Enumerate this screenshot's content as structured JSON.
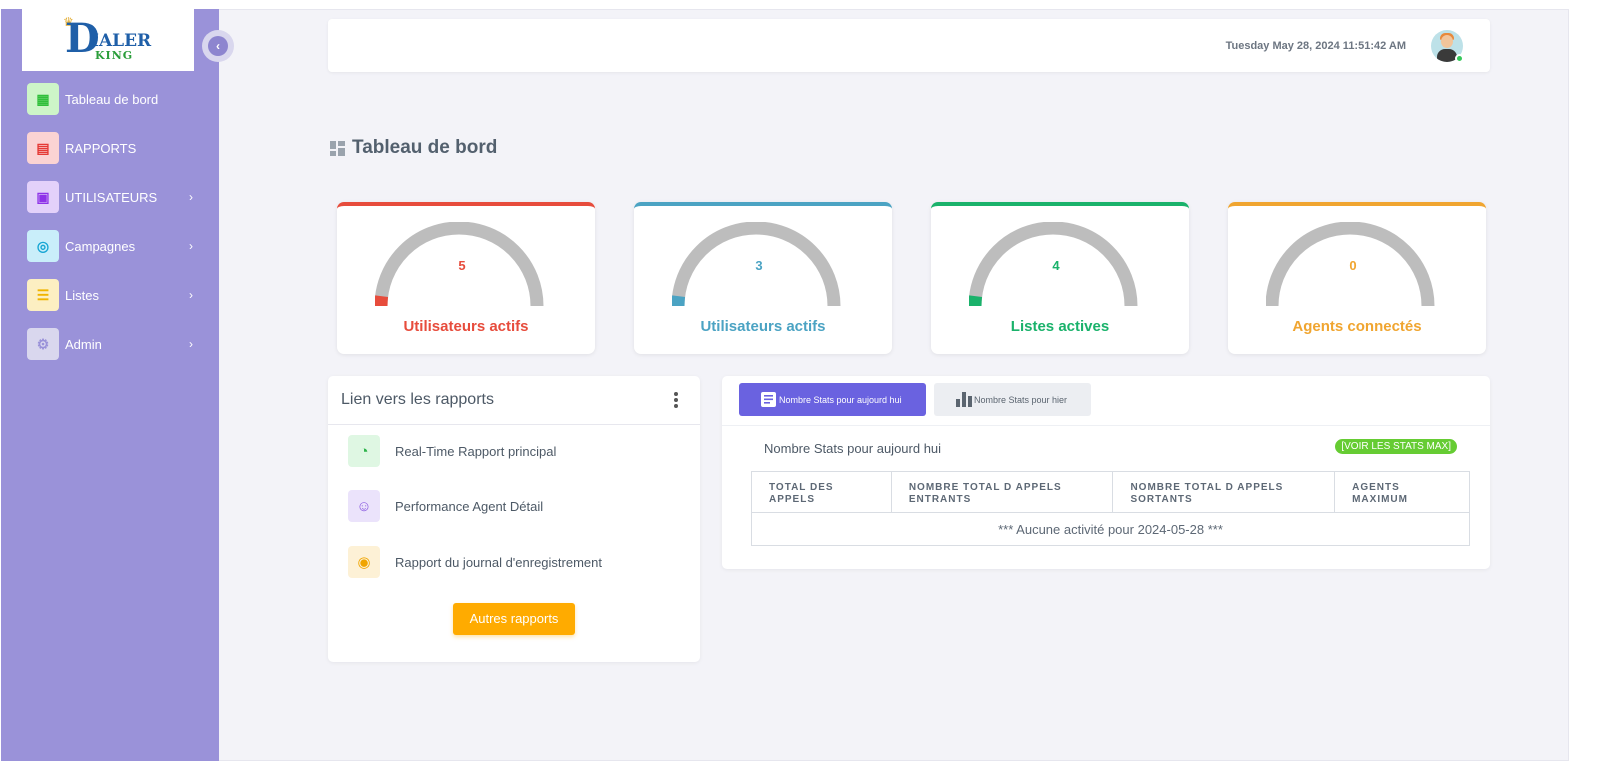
{
  "app": {
    "logo_text": "DIALER KING",
    "datetime": "Tuesday May 28, 2024 11:51:42 AM"
  },
  "sidebar": {
    "items": [
      {
        "label": "Tableau de bord",
        "icon": "dashboard-icon",
        "icon_bg": "#cdf5c8",
        "icon_color": "#2fbf3a",
        "has_chevron": false
      },
      {
        "label": "RAPPORTS",
        "icon": "report-file-icon",
        "icon_bg": "#fbd3d3",
        "icon_color": "#e53935",
        "has_chevron": false
      },
      {
        "label": "UTILISATEURS",
        "icon": "user-contact-icon",
        "icon_bg": "#e3d1fa",
        "icon_color": "#8e33e8",
        "has_chevron": true
      },
      {
        "label": "Campagnes",
        "icon": "target-icon",
        "icon_bg": "#c9eefa",
        "icon_color": "#17a6d4",
        "has_chevron": true
      },
      {
        "label": "Listes",
        "icon": "list-icon",
        "icon_bg": "#fcefc2",
        "icon_color": "#f0b400",
        "has_chevron": true
      },
      {
        "label": "Admin",
        "icon": "gear-icon",
        "icon_bg": "#d9d7ee",
        "icon_color": "#9a92d9",
        "has_chevron": true
      }
    ]
  },
  "page": {
    "title": "Tableau de bord"
  },
  "gauges": [
    {
      "value": "5",
      "label": "Utilisateurs actifs",
      "color": "#e74c3c",
      "fraction": 0.04
    },
    {
      "value": "3",
      "label": "Utilisateurs actifs",
      "color": "#4ba3c3",
      "fraction": 0.04
    },
    {
      "value": "4",
      "label": "Listes actives",
      "color": "#1ab26b",
      "fraction": 0.04
    },
    {
      "value": "0",
      "label": "Agents connectés",
      "color": "#f0a530",
      "fraction": 0
    }
  ],
  "reports": {
    "title": "Lien vers les rapports",
    "items": [
      {
        "label": "Real-Time Rapport principal",
        "icon": "clock-pie-icon",
        "icon_bg": "#dff7e3",
        "icon_color": "#2db34a"
      },
      {
        "label": "Performance Agent Détail",
        "icon": "user-outline-icon",
        "icon_bg": "#ebe3fb",
        "icon_color": "#8a5be0"
      },
      {
        "label": "Rapport du journal d'enregistrement",
        "icon": "microphone-icon",
        "icon_bg": "#fdf1d6",
        "icon_color": "#f0a500"
      }
    ],
    "other_button": "Autres rapports"
  },
  "stats": {
    "tab_today": "Nombre Stats pour aujourd hui",
    "tab_yesterday": "Nombre Stats pour hier",
    "subtitle": "Nombre Stats pour aujourd hui",
    "max_link": "[VOIR LES STATS MAX]",
    "columns": [
      "TOTAL DES APPELS",
      "NOMBRE TOTAL D APPELS ENTRANTS",
      "NOMBRE TOTAL D APPELS SORTANTS",
      "AGENTS MAXIMUM"
    ],
    "empty_message": "*** Aucune activité pour 2024-05-28 ***"
  }
}
